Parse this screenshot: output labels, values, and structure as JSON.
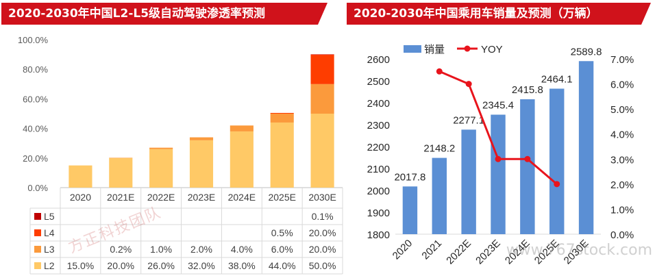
{
  "left": {
    "title": "2020-2030年中国L2-L5级自动驾驶渗透率预测",
    "watermark": "方正科技团队",
    "chart_data": {
      "type": "bar",
      "stacked": true,
      "categories": [
        "2020",
        "2021E",
        "2022E",
        "2023E",
        "2024E",
        "2025E",
        "2030E"
      ],
      "ylim": [
        0,
        100
      ],
      "yticks": [
        "0.0%",
        "20.0%",
        "40.0%",
        "60.0%",
        "80.0%",
        "100.0%"
      ],
      "series": [
        {
          "name": "L2",
          "color": "#ffc966",
          "values": [
            15,
            20,
            26,
            32,
            38,
            44,
            50
          ],
          "labels": [
            "15.0%",
            "20.0%",
            "26.0%",
            "32.0%",
            "38.0%",
            "44.0%",
            "50.0%"
          ]
        },
        {
          "name": "L3",
          "color": "#fb9a3c",
          "values": [
            0,
            0.2,
            1,
            2,
            4,
            6,
            20
          ],
          "labels": [
            "",
            "0.2%",
            "1.0%",
            "2.0%",
            "4.0%",
            "6.0%",
            "20.0%"
          ]
        },
        {
          "name": "L4",
          "color": "#fe3d00",
          "values": [
            0,
            0,
            0,
            0,
            0,
            0.5,
            20
          ],
          "labels": [
            "",
            "",
            "",
            "",
            "",
            "0.5%",
            "20.0%"
          ]
        },
        {
          "name": "L5",
          "color": "#c00000",
          "values": [
            0,
            0,
            0,
            0,
            0,
            0,
            0.1
          ],
          "labels": [
            "",
            "",
            "",
            "",
            "",
            "",
            "0.1%"
          ]
        }
      ]
    }
  },
  "right": {
    "title": "2020-2030年中国乘用车销量及预测（万辆）",
    "watermark": "www.767stock.com",
    "chart_data": {
      "type": "bar",
      "categories": [
        "2020",
        "2021",
        "2022E",
        "2023E",
        "2024E",
        "2025E",
        "2030E"
      ],
      "series": [
        {
          "name": "销量",
          "color": "#5b8fd4",
          "values": [
            2017.8,
            2148.2,
            2277.1,
            2345.4,
            2415.8,
            2464.1,
            2589.8
          ],
          "labels": [
            "2017.8",
            "2148.2",
            "2277.1",
            "2345.4",
            "2415.8",
            "2464.1",
            "2589.8"
          ]
        },
        {
          "name": "YOY",
          "type": "line",
          "axis": "right",
          "color": "#e8141c",
          "values": [
            null,
            6.5,
            6.0,
            3.0,
            3.0,
            2.0,
            null
          ]
        }
      ],
      "ylim": [
        1800,
        2600
      ],
      "yticks": [
        "1800",
        "1900",
        "2000",
        "2100",
        "2200",
        "2300",
        "2400",
        "2500",
        "2600"
      ],
      "y2lim": [
        0,
        7
      ],
      "y2ticks": [
        "0.0%",
        "1.0%",
        "2.0%",
        "3.0%",
        "4.0%",
        "5.0%",
        "6.0%",
        "7.0%"
      ]
    }
  }
}
